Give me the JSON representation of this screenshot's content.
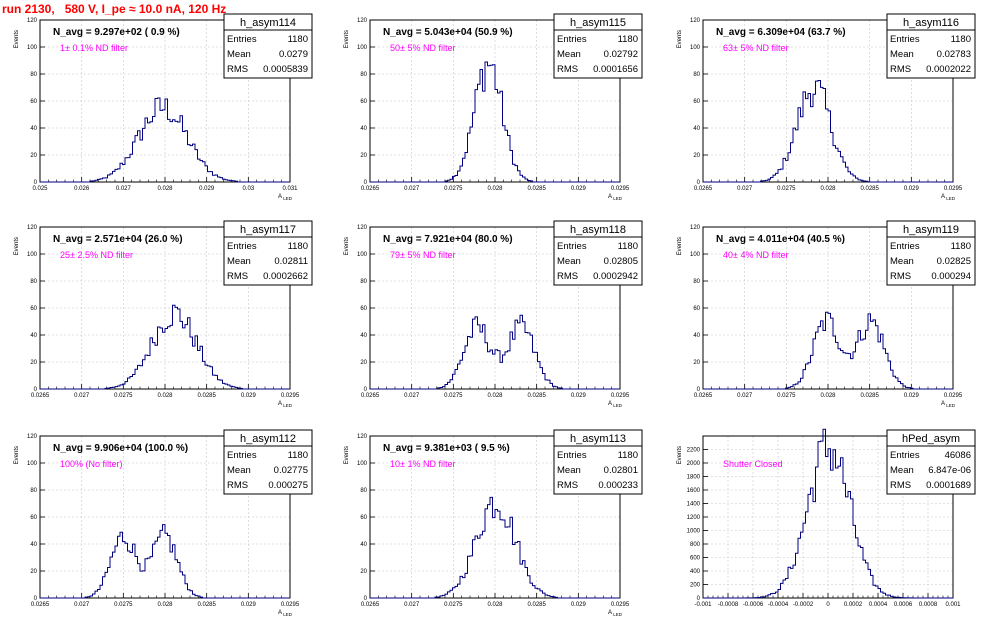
{
  "title": "run 2130,   580 V, I_pe ≈ 10.0 nA, 120 Hz",
  "colors": {
    "hist": "#000080",
    "text": "#000000",
    "note": "#ff00ff",
    "title": "#ff0000",
    "grid": "#c8c8c8"
  },
  "chart_data": [
    {
      "type": "histogram",
      "name": "h_asym114",
      "stats": {
        "entries": "1180",
        "mean": "0.0279",
        "rms": "0.0005839"
      },
      "navg": "N_avg = 9.297e+02 ( 0.9 %)",
      "note": "1± 0.1% ND filter",
      "ylabel": "Events",
      "xlabel": "A_LED",
      "grid": true,
      "xlim": [
        0.025,
        0.031
      ],
      "ylim": [
        0,
        120
      ],
      "xticks": [
        "0.025",
        "0.026",
        "0.027",
        "0.028",
        "0.029",
        "0.03",
        "0.031"
      ],
      "yticks": [
        "0",
        "20",
        "40",
        "60",
        "80",
        "100",
        "120"
      ],
      "peak": 0.02795,
      "sigma": 0.00058,
      "height": 55,
      "bimodal": false
    },
    {
      "type": "histogram",
      "name": "h_asym115",
      "stats": {
        "entries": "1180",
        "mean": "0.02792",
        "rms": "0.0001656"
      },
      "navg": "N_avg = 5.043e+04 (50.9 %)",
      "note": "50± 5% ND filter",
      "ylabel": "Events",
      "xlabel": "A_LED",
      "grid": true,
      "xlim": [
        0.0265,
        0.0295
      ],
      "ylim": [
        0,
        120
      ],
      "xticks": [
        "0.0265",
        "0.027",
        "0.0275",
        "0.028",
        "0.0285",
        "0.029",
        "0.0295"
      ],
      "yticks": [
        "0",
        "20",
        "40",
        "60",
        "80",
        "100",
        "120"
      ],
      "peak": 0.02792,
      "sigma": 0.000166,
      "height": 88,
      "bimodal": false
    },
    {
      "type": "histogram",
      "name": "h_asym116",
      "stats": {
        "entries": "1180",
        "mean": "0.02783",
        "rms": "0.0002022"
      },
      "navg": "N_avg = 6.309e+04 (63.7 %)",
      "note": "63± 5% ND filter",
      "ylabel": "Events",
      "xlabel": "A_LED",
      "grid": true,
      "xlim": [
        0.0265,
        0.0295
      ],
      "ylim": [
        0,
        120
      ],
      "xticks": [
        "0.0265",
        "0.027",
        "0.0275",
        "0.028",
        "0.0285",
        "0.029",
        "0.0295"
      ],
      "yticks": [
        "0",
        "20",
        "40",
        "60",
        "80",
        "100",
        "120"
      ],
      "peak": 0.02783,
      "sigma": 0.000202,
      "height": 70,
      "bimodal": false
    },
    {
      "type": "histogram",
      "name": "h_asym117",
      "stats": {
        "entries": "1180",
        "mean": "0.02811",
        "rms": "0.0002662"
      },
      "navg": "N_avg = 2.571e+04 (26.0 %)",
      "note": "25± 2.5% ND filter",
      "ylabel": "Events",
      "xlabel": "A_LED",
      "grid": true,
      "xlim": [
        0.0265,
        0.0295
      ],
      "ylim": [
        0,
        120
      ],
      "xticks": [
        "0.0265",
        "0.027",
        "0.0275",
        "0.028",
        "0.0285",
        "0.029",
        "0.0295"
      ],
      "yticks": [
        "0",
        "20",
        "40",
        "60",
        "80",
        "100",
        "120"
      ],
      "peak": 0.02811,
      "sigma": 0.000266,
      "height": 56,
      "bimodal": false
    },
    {
      "type": "histogram",
      "name": "h_asym118",
      "stats": {
        "entries": "1180",
        "mean": "0.02805",
        "rms": "0.0002942"
      },
      "navg": "N_avg = 7.921e+04 (80.0 %)",
      "note": "79± 5% ND filter",
      "ylabel": "Events",
      "xlabel": "A_LED",
      "grid": true,
      "xlim": [
        0.0265,
        0.0295
      ],
      "ylim": [
        0,
        120
      ],
      "xticks": [
        "0.0265",
        "0.027",
        "0.0275",
        "0.028",
        "0.0285",
        "0.029",
        "0.0295"
      ],
      "yticks": [
        "0",
        "20",
        "40",
        "60",
        "80",
        "100",
        "120"
      ],
      "peak": 0.02805,
      "sigma": 0.000294,
      "height": 50,
      "bimodal": true
    },
    {
      "type": "histogram",
      "name": "h_asym119",
      "stats": {
        "entries": "1180",
        "mean": "0.02825",
        "rms": "0.000294"
      },
      "navg": "N_avg = 4.011e+04 (40.5 %)",
      "note": "40± 4% ND filter",
      "ylabel": "Events",
      "xlabel": "A_LED",
      "grid": true,
      "xlim": [
        0.0265,
        0.0295
      ],
      "ylim": [
        0,
        120
      ],
      "xticks": [
        "0.0265",
        "0.027",
        "0.0275",
        "0.028",
        "0.0285",
        "0.029",
        "0.0295"
      ],
      "yticks": [
        "0",
        "20",
        "40",
        "60",
        "80",
        "100",
        "120"
      ],
      "peak": 0.02825,
      "sigma": 0.000294,
      "height": 55,
      "bimodal": true
    },
    {
      "type": "histogram",
      "name": "h_asym112",
      "stats": {
        "entries": "1180",
        "mean": "0.02775",
        "rms": "0.000275"
      },
      "navg": "N_avg = 9.906e+04 (100.0 %)",
      "note": "100% (No filter)",
      "ylabel": "Events",
      "xlabel": "A_LED",
      "grid": true,
      "xlim": [
        0.0265,
        0.0295
      ],
      "ylim": [
        0,
        120
      ],
      "xticks": [
        "0.0265",
        "0.027",
        "0.0275",
        "0.028",
        "0.0285",
        "0.029",
        "0.0295"
      ],
      "yticks": [
        "0",
        "20",
        "40",
        "60",
        "80",
        "100",
        "120"
      ],
      "peak": 0.02775,
      "sigma": 0.000275,
      "height": 50,
      "bimodal": true
    },
    {
      "type": "histogram",
      "name": "h_asym113",
      "stats": {
        "entries": "1180",
        "mean": "0.02801",
        "rms": "0.000233"
      },
      "navg": "N_avg = 9.381e+03 ( 9.5 %)",
      "note": "10± 1% ND filter",
      "ylabel": "Events",
      "xlabel": "A_LED",
      "grid": true,
      "xlim": [
        0.0265,
        0.0295
      ],
      "ylim": [
        0,
        120
      ],
      "xticks": [
        "0.0265",
        "0.027",
        "0.0275",
        "0.028",
        "0.0285",
        "0.029",
        "0.0295"
      ],
      "yticks": [
        "0",
        "20",
        "40",
        "60",
        "80",
        "100",
        "120"
      ],
      "peak": 0.02801,
      "sigma": 0.000233,
      "height": 72,
      "bimodal": false
    },
    {
      "type": "histogram",
      "name": "hPed_asym",
      "stats": {
        "entries": "46086",
        "mean": "6.847e-06",
        "rms": "0.0001689"
      },
      "navg": "",
      "note": "Shutter Closed",
      "ylabel": "Events",
      "xlabel": "",
      "grid": true,
      "xlim": [
        -0.001,
        0.001
      ],
      "ylim": [
        0,
        2400
      ],
      "xticks": [
        "-0.001",
        "-0.0008",
        "-0.0006",
        "-0.0004",
        "-0.0002",
        "0",
        "0.0002",
        "0.0004",
        "0.0006",
        "0.0008",
        "0.001"
      ],
      "yticks": [
        "0",
        "200",
        "400",
        "600",
        "800",
        "1000",
        "1200",
        "1400",
        "1600",
        "1800",
        "2000",
        "2200"
      ],
      "peak": 6.8e-06,
      "sigma": 0.000169,
      "height": 2230,
      "bimodal": false
    }
  ]
}
